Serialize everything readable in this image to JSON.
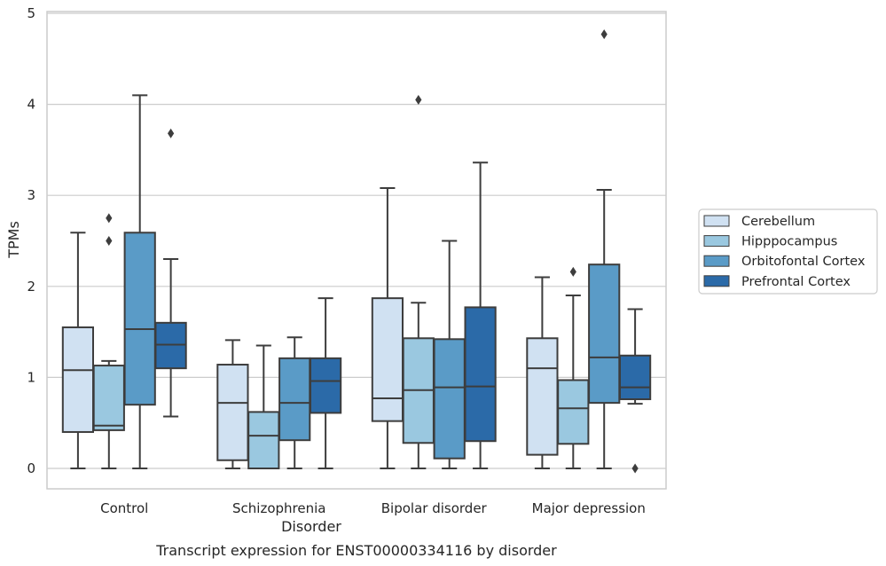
{
  "caption": "Transcript expression for ENST00000334116 by disorder",
  "chart_data": {
    "type": "box",
    "xlabel": "Disorder",
    "ylabel": "TPMs",
    "ylim": [
      -0.22,
      5.05
    ],
    "yticks": [
      0,
      1,
      2,
      3,
      4,
      5
    ],
    "grid": "horizontal",
    "legend_position": "right",
    "categories": [
      "Control",
      "Schizophrenia",
      "Bipolar disorder",
      "Major depression"
    ],
    "series": [
      {
        "name": "Cerebellum",
        "color": "#d0e1f2",
        "boxes": [
          {
            "whisker_low": 0.0,
            "q1": 0.4,
            "median": 1.08,
            "q3": 1.55,
            "whisker_high": 2.59,
            "outliers": []
          },
          {
            "whisker_low": 0.0,
            "q1": 0.09,
            "median": 0.72,
            "q3": 1.14,
            "whisker_high": 1.41,
            "outliers": []
          },
          {
            "whisker_low": 0.0,
            "q1": 0.52,
            "median": 0.77,
            "q3": 1.87,
            "whisker_high": 3.08,
            "outliers": []
          },
          {
            "whisker_low": 0.0,
            "q1": 0.15,
            "median": 1.1,
            "q3": 1.43,
            "whisker_high": 2.1,
            "outliers": []
          }
        ]
      },
      {
        "name": "Hipppocampus",
        "color": "#9ac8e0",
        "boxes": [
          {
            "whisker_low": 0.0,
            "q1": 0.42,
            "median": 0.47,
            "q3": 1.13,
            "whisker_high": 1.18,
            "outliers": [
              2.5,
              2.75
            ]
          },
          {
            "whisker_low": 0.0,
            "q1": 0.0,
            "median": 0.36,
            "q3": 0.62,
            "whisker_high": 1.35,
            "outliers": []
          },
          {
            "whisker_low": 0.0,
            "q1": 0.28,
            "median": 0.86,
            "q3": 1.43,
            "whisker_high": 1.82,
            "outliers": [
              4.05
            ]
          },
          {
            "whisker_low": 0.0,
            "q1": 0.27,
            "median": 0.66,
            "q3": 0.97,
            "whisker_high": 1.9,
            "outliers": [
              2.16
            ]
          }
        ]
      },
      {
        "name": "Orbitofontal Cortex",
        "color": "#5a9bc7",
        "boxes": [
          {
            "whisker_low": 0.0,
            "q1": 0.7,
            "median": 1.53,
            "q3": 2.59,
            "whisker_high": 4.1,
            "outliers": []
          },
          {
            "whisker_low": 0.0,
            "q1": 0.31,
            "median": 0.72,
            "q3": 1.21,
            "whisker_high": 1.44,
            "outliers": []
          },
          {
            "whisker_low": 0.0,
            "q1": 0.11,
            "median": 0.89,
            "q3": 1.42,
            "whisker_high": 2.5,
            "outliers": []
          },
          {
            "whisker_low": 0.0,
            "q1": 0.72,
            "median": 1.22,
            "q3": 2.24,
            "whisker_high": 3.06,
            "outliers": [
              4.77
            ]
          }
        ]
      },
      {
        "name": "Prefrontal Cortex",
        "color": "#2b6aa8",
        "boxes": [
          {
            "whisker_low": 0.57,
            "q1": 1.1,
            "median": 1.36,
            "q3": 1.6,
            "whisker_high": 2.3,
            "outliers": [
              3.68
            ]
          },
          {
            "whisker_low": 0.0,
            "q1": 0.61,
            "median": 0.96,
            "q3": 1.21,
            "whisker_high": 1.87,
            "outliers": []
          },
          {
            "whisker_low": 0.0,
            "q1": 0.3,
            "median": 0.9,
            "q3": 1.77,
            "whisker_high": 3.36,
            "outliers": []
          },
          {
            "whisker_low": 0.71,
            "q1": 0.76,
            "median": 0.89,
            "q3": 1.24,
            "whisker_high": 1.75,
            "outliers": [
              0.0
            ]
          }
        ]
      }
    ]
  }
}
